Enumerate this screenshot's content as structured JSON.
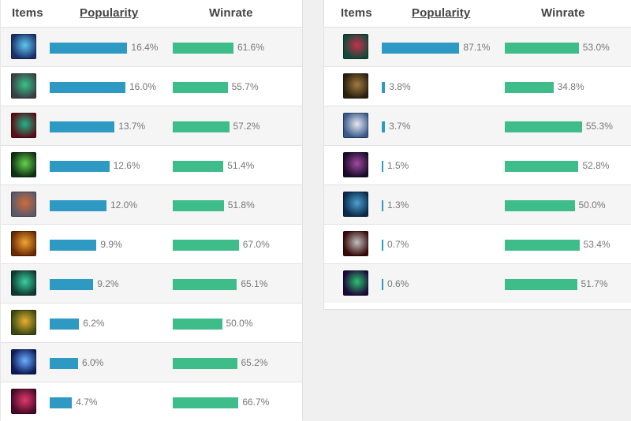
{
  "colors": {
    "popularity_bar": "#2e9ac4",
    "winrate_bar": "#3ebd8b"
  },
  "left": {
    "headers": {
      "items": "Items",
      "popularity": "Popularity",
      "winrate": "Winrate"
    },
    "rows": [
      {
        "icon": "dark-blue-rune-item-icon",
        "c1": "#1b2f6b",
        "c2": "#5ec8f0",
        "popularity": 16.4,
        "popularity_label": "16.4%",
        "winrate": 61.6,
        "winrate_label": "61.6%"
      },
      {
        "icon": "green-eye-orb-item-icon",
        "c1": "#3a3f45",
        "c2": "#36c48a",
        "popularity": 16.0,
        "popularity_label": "16.0%",
        "winrate": 55.7,
        "winrate_label": "55.7%"
      },
      {
        "icon": "crimson-blade-item-icon",
        "c1": "#5a0f18",
        "c2": "#20b58a",
        "popularity": 13.7,
        "popularity_label": "13.7%",
        "winrate": 57.2,
        "winrate_label": "57.2%"
      },
      {
        "icon": "green-claw-item-icon",
        "c1": "#0f2f14",
        "c2": "#63d44a",
        "popularity": 12.6,
        "popularity_label": "12.6%",
        "winrate": 51.4,
        "winrate_label": "51.4%"
      },
      {
        "icon": "silver-axe-item-icon",
        "c1": "#5a5a6a",
        "c2": "#d06a3a",
        "popularity": 12.0,
        "popularity_label": "12.0%",
        "winrate": 51.8,
        "winrate_label": "51.8%"
      },
      {
        "icon": "golden-ember-item-icon",
        "c1": "#6a2a05",
        "c2": "#f2a530",
        "popularity": 9.9,
        "popularity_label": "9.9%",
        "winrate": 67.0,
        "winrate_label": "67.0%"
      },
      {
        "icon": "green-mask-item-icon",
        "c1": "#103a30",
        "c2": "#3ad0a0",
        "popularity": 9.2,
        "popularity_label": "9.2%",
        "winrate": 65.1,
        "winrate_label": "65.1%"
      },
      {
        "icon": "golden-horn-item-icon",
        "c1": "#3b4a12",
        "c2": "#e8b030",
        "popularity": 6.2,
        "popularity_label": "6.2%",
        "winrate": 50.0,
        "winrate_label": "50.0%"
      },
      {
        "icon": "blue-star-orb-item-icon",
        "c1": "#0e1a5a",
        "c2": "#6ab0ff",
        "popularity": 6.0,
        "popularity_label": "6.0%",
        "winrate": 65.2,
        "winrate_label": "65.2%"
      },
      {
        "icon": "red-hourglass-item-icon",
        "c1": "#4a0a2a",
        "c2": "#e03a6a",
        "popularity": 4.7,
        "popularity_label": "4.7%",
        "winrate": 66.7,
        "winrate_label": "66.7%"
      }
    ]
  },
  "right": {
    "headers": {
      "items": "Items",
      "popularity": "Popularity",
      "winrate": "Winrate"
    },
    "rows": [
      {
        "icon": "red-boots-item-icon",
        "c1": "#0f4a3a",
        "c2": "#c8304a",
        "popularity": 87.1,
        "popularity_label": "87.1%",
        "winrate": 53.0,
        "winrate_label": "53.0%"
      },
      {
        "icon": "brown-boots-item-icon",
        "c1": "#2a2010",
        "c2": "#a07a40",
        "popularity": 3.8,
        "popularity_label": "3.8%",
        "winrate": 34.8,
        "winrate_label": "34.8%"
      },
      {
        "icon": "white-boots-item-icon",
        "c1": "#3a5a8a",
        "c2": "#e8e8f0",
        "popularity": 3.7,
        "popularity_label": "3.7%",
        "winrate": 55.3,
        "winrate_label": "55.3%"
      },
      {
        "icon": "purple-boots-item-icon",
        "c1": "#1a0a2a",
        "c2": "#a04aa0",
        "popularity": 1.5,
        "popularity_label": "1.5%",
        "winrate": 52.8,
        "winrate_label": "52.8%"
      },
      {
        "icon": "steel-blue-boots-item-icon",
        "c1": "#0a2a4a",
        "c2": "#4aa0d0",
        "popularity": 1.3,
        "popularity_label": "1.3%",
        "winrate": 50.0,
        "winrate_label": "50.0%"
      },
      {
        "icon": "iron-boots-item-icon",
        "c1": "#3a0a0a",
        "c2": "#c0c0c0",
        "popularity": 0.7,
        "popularity_label": "0.7%",
        "winrate": 53.4,
        "winrate_label": "53.4%"
      },
      {
        "icon": "violet-green-boots-item-icon",
        "c1": "#1a0a3a",
        "c2": "#30c070",
        "popularity": 0.6,
        "popularity_label": "0.6%",
        "winrate": 51.7,
        "winrate_label": "51.7%"
      }
    ]
  }
}
